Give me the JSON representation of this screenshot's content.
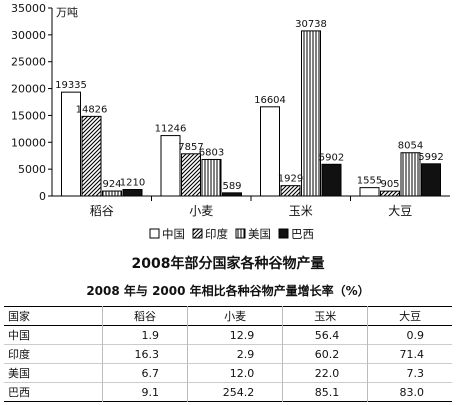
{
  "chart_data": {
    "type": "bar",
    "title": "2008年部分国家各种谷物产量",
    "unit_label": "万吨",
    "categories": [
      "稻谷",
      "小麦",
      "玉米",
      "大豆"
    ],
    "ylim": [
      0,
      35000
    ],
    "yticks": [
      0,
      5000,
      10000,
      15000,
      20000,
      25000,
      30000,
      35000
    ],
    "series": [
      {
        "name": "中国",
        "pattern": "white",
        "values": [
          19335,
          11246,
          16604,
          1555
        ]
      },
      {
        "name": "印度",
        "pattern": "diagonal",
        "values": [
          14826,
          7857,
          1929,
          905
        ]
      },
      {
        "name": "美国",
        "pattern": "vertical",
        "values": [
          924,
          6803,
          30738,
          8054
        ]
      },
      {
        "name": "巴西",
        "pattern": "black",
        "values": [
          1210,
          589,
          5902,
          5992
        ]
      }
    ],
    "legend_position": "bottom"
  },
  "table": {
    "title": "2008 年与 2000 年相比各种谷物产量增长率（%）",
    "headers": [
      "国家",
      "稻谷",
      "小麦",
      "玉米",
      "大豆"
    ],
    "rows": [
      {
        "country": "中国",
        "values": [
          "1.9",
          "12.9",
          "56.4",
          "0.9"
        ]
      },
      {
        "country": "印度",
        "values": [
          "16.3",
          "2.9",
          "60.2",
          "71.4"
        ]
      },
      {
        "country": "美国",
        "values": [
          "6.7",
          "12.0",
          "22.0",
          "7.3"
        ]
      },
      {
        "country": "巴西",
        "values": [
          "9.1",
          "254.2",
          "85.1",
          "83.0"
        ]
      }
    ]
  }
}
